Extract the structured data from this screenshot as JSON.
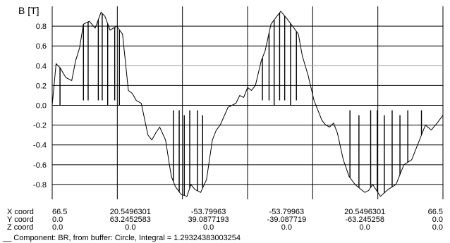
{
  "chart_data": {
    "type": "line",
    "ylabel": "B [T]",
    "ylim": [
      -0.95,
      1.0
    ],
    "yticks": [
      0.8,
      0.6,
      0.4,
      0.2,
      0.0,
      -0.2,
      -0.4,
      -0.6,
      -0.8
    ],
    "ytick_labels": [
      "0.8",
      "0.6",
      "0.4",
      "0.2",
      "0.0",
      "-0.2",
      "-0.4",
      "-0.6",
      "-0.8"
    ],
    "xlim": [
      0,
      1
    ],
    "grid": true,
    "series": [
      {
        "color": "#000000",
        "x": [
          0.0,
          0.01,
          0.02,
          0.035,
          0.05,
          0.06,
          0.07,
          0.08,
          0.095,
          0.11,
          0.125,
          0.135,
          0.148,
          0.165,
          0.18,
          0.195,
          0.205,
          0.215,
          0.228,
          0.245,
          0.255,
          0.265,
          0.275,
          0.29,
          0.3,
          0.305,
          0.315,
          0.33,
          0.345,
          0.355,
          0.365,
          0.38,
          0.395,
          0.41,
          0.42,
          0.43,
          0.45,
          0.47,
          0.48,
          0.49,
          0.5,
          0.51,
          0.52,
          0.535,
          0.545,
          0.56,
          0.575,
          0.585,
          0.6,
          0.615,
          0.63,
          0.64,
          0.655,
          0.67,
          0.69,
          0.7,
          0.71,
          0.72,
          0.73,
          0.745,
          0.76,
          0.775,
          0.79,
          0.8,
          0.81,
          0.82,
          0.84,
          0.86,
          0.88,
          0.9,
          0.92,
          0.94,
          0.955,
          0.97,
          0.985,
          1.0
        ],
        "y": [
          0.0,
          0.42,
          0.38,
          0.28,
          0.25,
          0.45,
          0.58,
          0.82,
          0.85,
          0.78,
          0.94,
          0.9,
          0.76,
          0.8,
          0.72,
          0.15,
          0.12,
          0.05,
          0.02,
          -0.3,
          -0.35,
          -0.28,
          -0.22,
          -0.35,
          -0.6,
          -0.72,
          -0.82,
          -0.9,
          -0.92,
          -0.8,
          -0.85,
          -0.88,
          -0.75,
          -0.35,
          -0.25,
          -0.2,
          -0.02,
          0.02,
          0.1,
          0.08,
          0.18,
          0.15,
          0.2,
          0.45,
          0.55,
          0.82,
          0.9,
          0.95,
          0.88,
          0.8,
          0.72,
          0.5,
          0.3,
          0.05,
          -0.15,
          -0.2,
          -0.22,
          -0.18,
          -0.28,
          -0.55,
          -0.72,
          -0.8,
          -0.85,
          -0.88,
          -0.86,
          -0.8,
          -0.92,
          -0.85,
          -0.8,
          -0.6,
          -0.55,
          -0.35,
          -0.2,
          -0.25,
          -0.18,
          -0.1
        ]
      }
    ],
    "spikes": [
      {
        "x": 0.02,
        "y": 0.0
      },
      {
        "x": 0.08,
        "y": 0.05
      },
      {
        "x": 0.092,
        "y": 0.05
      },
      {
        "x": 0.118,
        "y": 0.05
      },
      {
        "x": 0.128,
        "y": 0.05
      },
      {
        "x": 0.142,
        "y": 0.0
      },
      {
        "x": 0.16,
        "y": 0.05
      },
      {
        "x": 0.172,
        "y": 0.0
      },
      {
        "x": 0.31,
        "y": -0.05
      },
      {
        "x": 0.325,
        "y": -0.05
      },
      {
        "x": 0.338,
        "y": -0.1
      },
      {
        "x": 0.352,
        "y": -0.05
      },
      {
        "x": 0.372,
        "y": -0.05
      },
      {
        "x": 0.385,
        "y": -0.1
      },
      {
        "x": 0.538,
        "y": 0.05
      },
      {
        "x": 0.555,
        "y": 0.05
      },
      {
        "x": 0.568,
        "y": 0.0
      },
      {
        "x": 0.582,
        "y": 0.05
      },
      {
        "x": 0.595,
        "y": 0.05
      },
      {
        "x": 0.61,
        "y": 0.0
      },
      {
        "x": 0.625,
        "y": 0.05
      },
      {
        "x": 0.762,
        "y": -0.05
      },
      {
        "x": 0.785,
        "y": -0.1
      },
      {
        "x": 0.815,
        "y": -0.05
      },
      {
        "x": 0.832,
        "y": -0.05
      },
      {
        "x": 0.85,
        "y": -0.1
      },
      {
        "x": 0.87,
        "y": -0.05
      },
      {
        "x": 0.89,
        "y": -0.1
      },
      {
        "x": 0.91,
        "y": -0.05
      },
      {
        "x": 0.945,
        "y": -0.05
      }
    ],
    "coord_rows": [
      {
        "label": "X coord",
        "values": [
          "66.5",
          "20.5496301",
          "-53.79963",
          "-53.79963",
          "20.5496301",
          "66.5"
        ]
      },
      {
        "label": "Y coord",
        "values": [
          "0.0",
          "63.2452583",
          "39.0877193",
          "-39.087719",
          "-63.245258",
          "0.0"
        ]
      },
      {
        "label": "Z coord",
        "values": [
          "0.0",
          "0.0",
          "0.0",
          "0.0",
          "0.0",
          "0.0"
        ]
      }
    ],
    "caption": "__ Component: BR, from buffer: Circle, Integral = 1.29324383003254"
  }
}
